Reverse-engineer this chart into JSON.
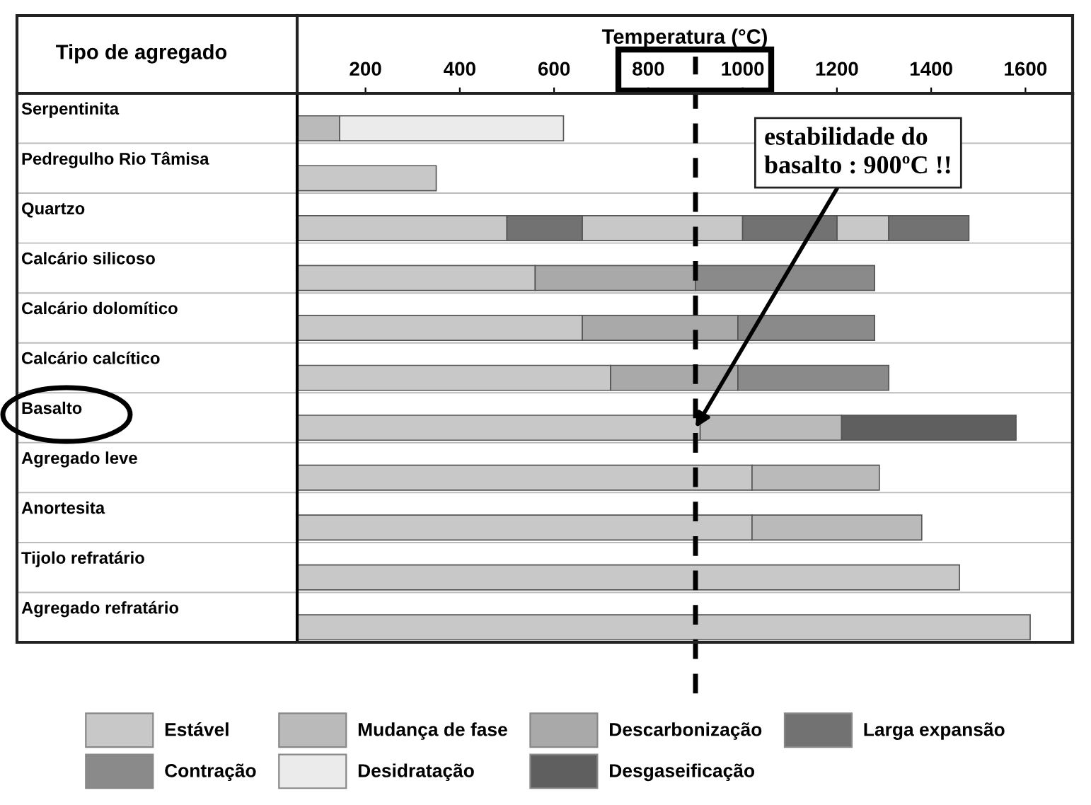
{
  "chart_data": {
    "type": "bar",
    "orientation": "horizontal",
    "xlabel": "Temperatura (°C)",
    "ylabel": "Tipo de agregado",
    "categories": [
      "Serpentinita",
      "Pedregulho Rio Tâmisa",
      "Quartzo",
      "Calcário silicoso",
      "Calcário dolomítico",
      "Calcário calcítico",
      "Basalto",
      "Agregado leve",
      "Anortesita",
      "Tijolo refratário",
      "Agregado refratário"
    ],
    "series": [
      {
        "name": "Estável",
        "color": "#c8c8c8",
        "base": [
          null,
          55,
          55,
          55,
          55,
          55,
          55,
          55,
          55,
          55,
          55
        ],
        "values": [
          null,
          295,
          445,
          505,
          605,
          665,
          855,
          965,
          965,
          1405,
          1555
        ]
      },
      {
        "name": "Mudança de fase",
        "color": "#bababa",
        "base": [
          55,
          null,
          null,
          null,
          null,
          null,
          910,
          1020,
          1020,
          null,
          null
        ],
        "values": [
          90,
          null,
          null,
          null,
          null,
          null,
          300,
          270,
          360,
          null,
          null
        ]
      },
      {
        "name": "Descarbonização",
        "color": "#a9a9a9",
        "base": [
          null,
          null,
          null,
          560,
          660,
          720,
          null,
          null,
          null,
          null,
          null
        ],
        "values": [
          null,
          null,
          null,
          340,
          330,
          270,
          null,
          null,
          null,
          null,
          null
        ]
      },
      {
        "name": "Larga expansão",
        "color": "#727272",
        "base": [
          null,
          null,
          500,
          null,
          null,
          null,
          null,
          null,
          null,
          null,
          null
        ],
        "values": [
          null,
          null,
          160,
          null,
          null,
          null,
          null,
          null,
          null,
          null,
          null
        ]
      },
      {
        "name": "Contração",
        "color": "#8a8a8a",
        "base": [
          null,
          null,
          null,
          900,
          990,
          990,
          null,
          null,
          null,
          null,
          null
        ],
        "values": [
          null,
          null,
          null,
          380,
          290,
          320,
          null,
          null,
          null,
          null,
          null
        ]
      },
      {
        "name": "Desidratação",
        "color": "#ebebeb",
        "base": [
          145,
          null,
          null,
          null,
          null,
          null,
          null,
          null,
          null,
          null,
          null
        ],
        "values": [
          475,
          null,
          null,
          null,
          null,
          null,
          null,
          null,
          null,
          null,
          null
        ]
      },
      {
        "name": "Desgaseificação",
        "color": "#5f5f5f",
        "base": [
          null,
          null,
          null,
          null,
          null,
          null,
          1210,
          null,
          null,
          null,
          null
        ],
        "values": [
          null,
          null,
          null,
          null,
          null,
          null,
          370,
          null,
          null,
          null,
          null
        ]
      },
      {
        "color": "#c8c8c8",
        "base": [
          null,
          null,
          660,
          null,
          null,
          null,
          null,
          null,
          null,
          null,
          null
        ],
        "values": [
          null,
          null,
          340,
          null,
          null,
          null,
          null,
          null,
          null,
          null,
          null
        ]
      },
      {
        "color": "#c8c8c8",
        "base": [
          null,
          null,
          1200,
          null,
          null,
          null,
          null,
          null,
          null,
          null,
          null
        ],
        "values": [
          null,
          null,
          110,
          null,
          null,
          null,
          null,
          null,
          null,
          null,
          null
        ]
      },
      {
        "color": "#727272",
        "base": [
          null,
          null,
          1000,
          null,
          null,
          null,
          null,
          null,
          null,
          null,
          null
        ],
        "values": [
          null,
          null,
          200,
          null,
          null,
          null,
          null,
          null,
          null,
          null,
          null
        ]
      },
      {
        "color": "#727272",
        "base": [
          null,
          null,
          1310,
          null,
          null,
          null,
          null,
          null,
          null,
          null,
          null
        ],
        "values": [
          null,
          null,
          170,
          null,
          null,
          null,
          null,
          null,
          null,
          null,
          null
        ]
      }
    ],
    "xlim": [
      55,
      1700
    ],
    "xticks": [
      200,
      400,
      600,
      800,
      1000,
      1200,
      1400,
      1600
    ],
    "ref_lines": [
      {
        "axis": "x",
        "value": 900,
        "line_style": "dashed",
        "color": "#000000"
      }
    ],
    "annotations": [
      {
        "text": "estabilidade do\nbasalto : 900ºC !!",
        "x": 900,
        "y": "Basalto"
      }
    ],
    "grid": "y",
    "legend": "bottom"
  }
}
